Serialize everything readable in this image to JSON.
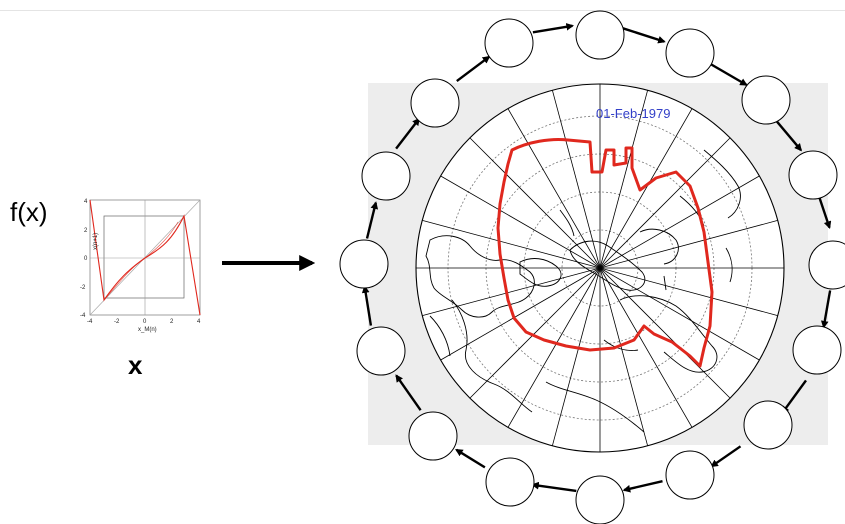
{
  "labels": {
    "fx": "f(x)",
    "x": "x",
    "date": "01-Feb-1979"
  },
  "map_plot": {
    "x_ticks": [
      "-4",
      "-2",
      "0",
      "2",
      "4"
    ],
    "y_ticks": [
      "4",
      "2",
      "0",
      "-2",
      "-4"
    ],
    "xlabel": "x_M(n)",
    "ylabel": "x(n+1)"
  },
  "colors": {
    "ice_edge": "#e0281e",
    "date_text": "#3340c8",
    "map_background": "#ededed"
  },
  "icons": {
    "ring_node": "circle-node",
    "arrow": "arrow-right"
  }
}
